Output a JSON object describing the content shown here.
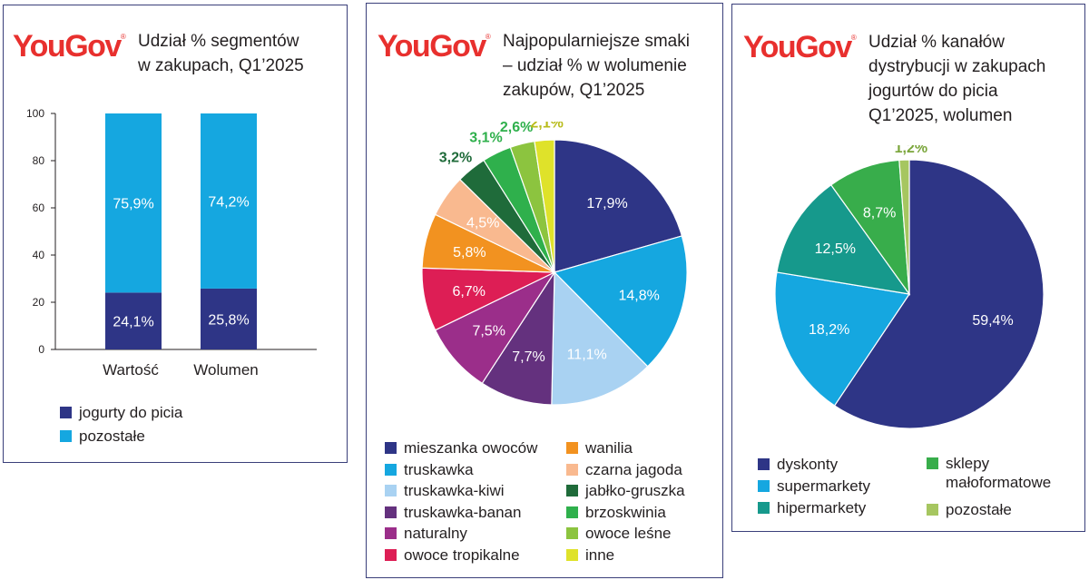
{
  "brand": "YouGov",
  "brand_mark": "®",
  "colors": {
    "navy": "#2e3586",
    "cyan": "#15a7e0",
    "lightblue": "#a9d2f2",
    "purple": "#64317e",
    "magenta": "#9b2e8a",
    "red": "#dd1e55",
    "orange": "#f29220",
    "peach": "#f9b98f",
    "darkgreen": "#1f6b3a",
    "green": "#2fb04c",
    "lightgreen": "#8cc43f",
    "yellow": "#dfe22a",
    "teal": "#16998c",
    "midgreen": "#38ad4b",
    "olive": "#a6c660",
    "border": "#3a3f7a"
  },
  "panels": [
    {
      "title_lines": [
        "Udział % segmentów",
        "w zakupach, Q1’2025"
      ]
    },
    {
      "title_lines": [
        "Najpopularniejsze smaki",
        "– udział % w wolumenie",
        "zakupów, Q1’2025"
      ]
    },
    {
      "title_lines": [
        "Udział % kanałów",
        "dystrybucji w zakupach",
        "jogurtów do picia",
        "Q1’2025, wolumen"
      ]
    }
  ],
  "chart_data": [
    {
      "type": "bar",
      "stacked": true,
      "categories": [
        "Wartość",
        "Wolumen"
      ],
      "series": [
        {
          "name": "jogurty do picia",
          "values": [
            24.1,
            25.8
          ],
          "labels": [
            "24,1%",
            "25,8%"
          ],
          "color": "#2e3586"
        },
        {
          "name": "pozostałe",
          "values": [
            75.9,
            74.2
          ],
          "labels": [
            "75,9%",
            "74,2%"
          ],
          "color": "#15a7e0"
        }
      ],
      "ylim": [
        0,
        100
      ],
      "yticks": [
        "0",
        "20",
        "40",
        "60",
        "80",
        "100"
      ],
      "legend": "bottom-left"
    },
    {
      "type": "pie",
      "slices": [
        {
          "name": "mieszanka owoców",
          "value": 17.9,
          "label": "17,9%",
          "color": "#2e3586"
        },
        {
          "name": "truskawka",
          "value": 14.8,
          "label": "14,8%",
          "color": "#15a7e0"
        },
        {
          "name": "truskawka-kiwi",
          "value": 11.1,
          "label": "11,1%",
          "color": "#a9d2f2"
        },
        {
          "name": "truskawka-banan",
          "value": 7.7,
          "label": "7,7%",
          "color": "#64317e"
        },
        {
          "name": "naturalny",
          "value": 7.5,
          "label": "7,5%",
          "color": "#9b2e8a"
        },
        {
          "name": "owoce tropikalne",
          "value": 6.7,
          "label": "6,7%",
          "color": "#dd1e55"
        },
        {
          "name": "wanilia",
          "value": 5.8,
          "label": "5,8%",
          "color": "#f29220"
        },
        {
          "name": "czarna jagoda",
          "value": 4.5,
          "label": "4,5%",
          "color": "#f9b98f"
        },
        {
          "name": "jabłko-gruszka",
          "value": 3.2,
          "label": "3,2%",
          "color": "#1f6b3a"
        },
        {
          "name": "brzoskwinia",
          "value": 3.1,
          "label": "3,1%",
          "color": "#2fb04c"
        },
        {
          "name": "owoce leśne",
          "value": 2.6,
          "label": "2,6%",
          "color": "#8cc43f"
        },
        {
          "name": "inne",
          "value": 2.1,
          "label": "2,1%",
          "color": "#dfe22a"
        }
      ],
      "legend": "bottom"
    },
    {
      "type": "pie",
      "slices": [
        {
          "name": "dyskonty",
          "value": 59.4,
          "label": "59,4%",
          "color": "#2e3586"
        },
        {
          "name": "supermarkety",
          "value": 18.2,
          "label": "18,2%",
          "color": "#15a7e0"
        },
        {
          "name": "hipermarkety",
          "value": 12.5,
          "label": "12,5%",
          "color": "#16998c"
        },
        {
          "name": "sklepy małoformatowe",
          "value": 8.7,
          "label": "8,7%",
          "color": "#38ad4b"
        },
        {
          "name": "pozostałe",
          "value": 1.2,
          "label": "1,2%",
          "color": "#a6c660"
        }
      ],
      "legend_labels": {
        "dyskonty": "dyskonty",
        "supermarkety": "supermarkety",
        "hipermarkety": "hipermarkety",
        "sklepy_line1": "sklepy",
        "sklepy_line2": "małoformatowe",
        "pozostale": "pozostałe"
      },
      "legend": "bottom"
    }
  ]
}
